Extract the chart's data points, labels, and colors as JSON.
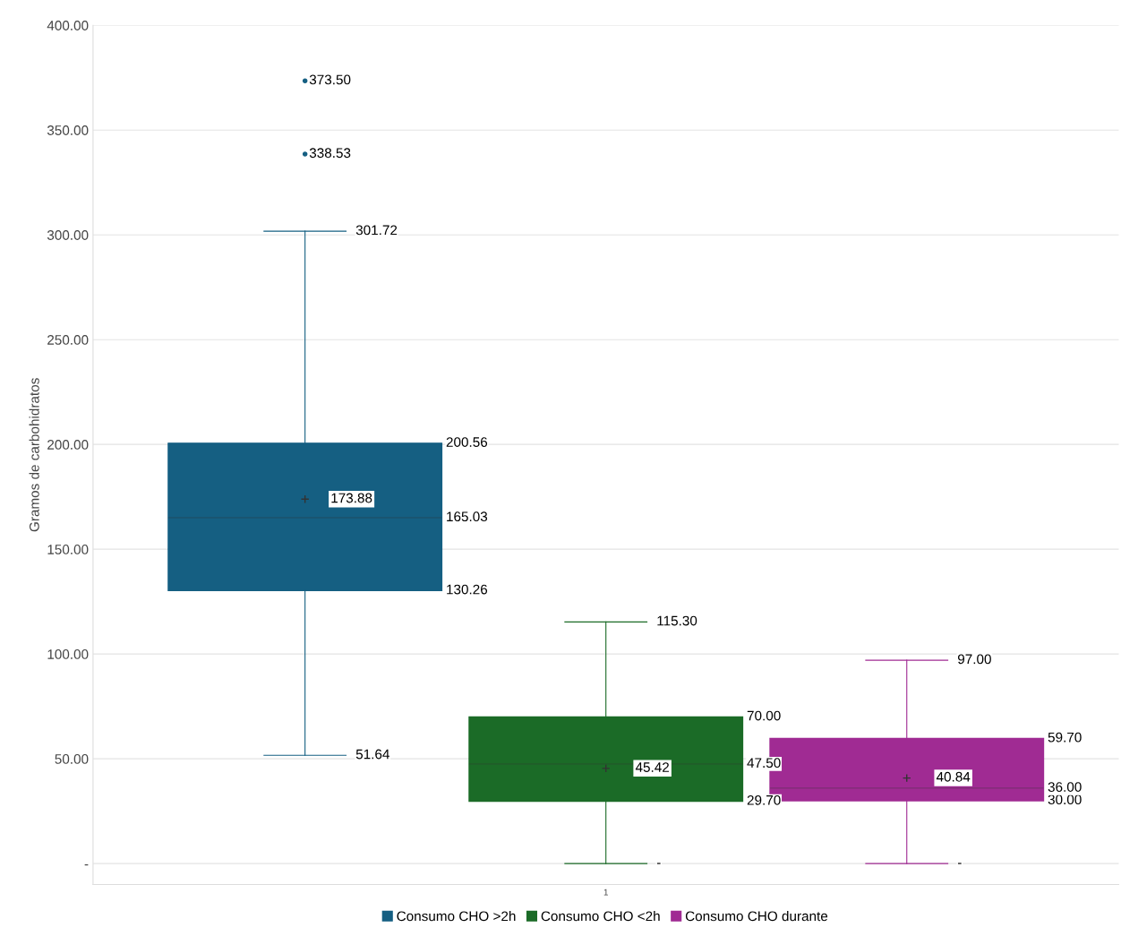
{
  "chart_data": {
    "type": "box",
    "ylabel": "Gramos de carbohidratos",
    "categories": [
      "1"
    ],
    "series": [
      {
        "name": "Consumo CHO >2h",
        "color": "#155f82",
        "boxes": [
          {
            "low": 51.64,
            "q1": 130.26,
            "median": 165.03,
            "q3": 200.56,
            "high": 301.72,
            "mean": 173.88,
            "outliers": [
              338.53,
              373.5
            ]
          }
        ]
      },
      {
        "name": "Consumo CHO <2h",
        "color": "#1b6b27",
        "boxes": [
          {
            "low": 0,
            "q1": 29.7,
            "median": 47.5,
            "q3": 70.0,
            "high": 115.3,
            "mean": 45.42
          }
        ]
      },
      {
        "name": "Consumo CHO durante",
        "color": "#a02b93",
        "boxes": [
          {
            "low": 0,
            "q1": 30.0,
            "median": 36.0,
            "q3": 59.7,
            "high": 97.0,
            "mean": 40.84
          }
        ]
      }
    ],
    "ylim": [
      -10,
      400
    ],
    "yticks": [
      {
        "value": 0,
        "label": "-"
      },
      {
        "value": 50,
        "label": "50.00"
      },
      {
        "value": 100,
        "label": "100.00"
      },
      {
        "value": 150,
        "label": "150.00"
      },
      {
        "value": 200,
        "label": "200.00"
      },
      {
        "value": 250,
        "label": "250.00"
      },
      {
        "value": 300,
        "label": "300.00"
      },
      {
        "value": 350,
        "label": "350.00"
      },
      {
        "value": 400,
        "label": "400.00"
      }
    ],
    "grid": "y",
    "legend": "bottom",
    "annotations": [
      "51.64",
      "130.26",
      "165.03",
      "200.56",
      "301.72",
      "173.88",
      "338.53",
      "373.50",
      "-",
      "29.70",
      "47.50",
      "70.00",
      "115.30",
      "45.42",
      "-",
      "30.00",
      "36.00",
      "59.70",
      "97.00",
      "40.84"
    ]
  }
}
